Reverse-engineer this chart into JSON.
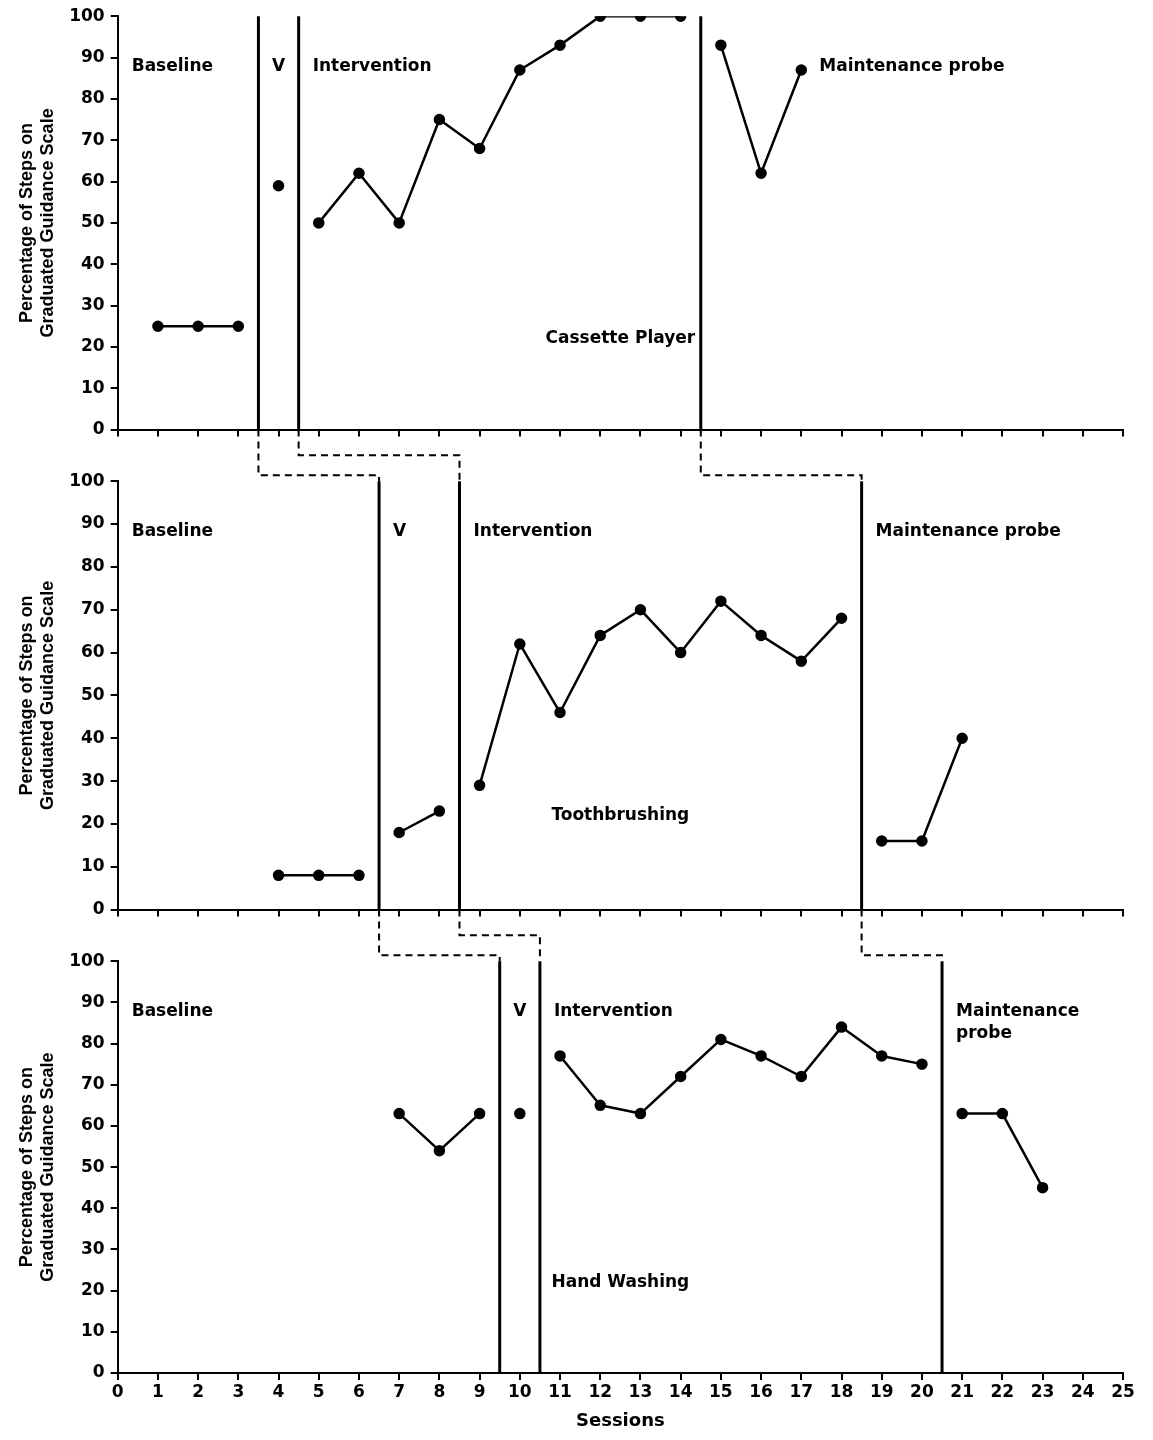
{
  "chart_data": [
    {
      "type": "line",
      "ylabel": "Percentage of Steps on Graduated Guidance Scale",
      "xlim": [
        0,
        25
      ],
      "xticks": [
        0,
        1,
        2,
        3,
        4,
        5,
        6,
        7,
        8,
        9,
        10,
        11,
        12,
        13,
        14,
        15,
        16,
        17,
        18,
        19,
        20,
        21,
        22,
        23,
        24,
        25
      ],
      "ylim": [
        0,
        100
      ],
      "yticks": [
        0,
        10,
        20,
        30,
        40,
        50,
        60,
        70,
        80,
        90,
        100
      ],
      "tick_labels": "y",
      "grid": false,
      "marker": "circle",
      "line_style": "solid",
      "series": [
        {
          "x": [
            1,
            2,
            3
          ],
          "values": [
            25,
            25,
            25
          ],
          "color": "#000000"
        },
        {
          "x": [
            4
          ],
          "values": [
            59
          ],
          "color": "#000000"
        },
        {
          "x": [
            5,
            6,
            7,
            8,
            9,
            10,
            11,
            12,
            13,
            14
          ],
          "values": [
            50,
            62,
            50,
            75,
            68,
            87,
            93,
            100,
            100,
            100
          ],
          "color": "#000000"
        },
        {
          "x": [
            15,
            16,
            17
          ],
          "values": [
            93,
            62,
            87
          ],
          "color": "#000000"
        }
      ],
      "ref_lines": [
        {
          "axis": "x",
          "value": 3.5,
          "color": "#000000"
        },
        {
          "axis": "x",
          "value": 4.5,
          "color": "#000000"
        },
        {
          "axis": "x",
          "value": 14.5,
          "color": "#000000"
        }
      ],
      "annotations": [
        "Baseline",
        "V",
        "Intervention",
        "Maintenance probe",
        "Cassette Player"
      ]
    },
    {
      "type": "line",
      "ylabel": "Percentage of Steps on Graduated Guidance Scale",
      "xlim": [
        0,
        25
      ],
      "xticks": [
        0,
        1,
        2,
        3,
        4,
        5,
        6,
        7,
        8,
        9,
        10,
        11,
        12,
        13,
        14,
        15,
        16,
        17,
        18,
        19,
        20,
        21,
        22,
        23,
        24,
        25
      ],
      "ylim": [
        0,
        100
      ],
      "yticks": [
        0,
        10,
        20,
        30,
        40,
        50,
        60,
        70,
        80,
        90,
        100
      ],
      "tick_labels": "y",
      "grid": false,
      "marker": "circle",
      "line_style": "solid",
      "series": [
        {
          "x": [
            4,
            5,
            6
          ],
          "values": [
            8,
            8,
            8
          ],
          "color": "#000000"
        },
        {
          "x": [
            7,
            8
          ],
          "values": [
            18,
            23
          ],
          "color": "#000000"
        },
        {
          "x": [
            9,
            10,
            11,
            12,
            13,
            14,
            15,
            16,
            17,
            18
          ],
          "values": [
            29,
            62,
            46,
            64,
            70,
            60,
            72,
            64,
            58,
            68
          ],
          "color": "#000000"
        },
        {
          "x": [
            19,
            20,
            21
          ],
          "values": [
            16,
            16,
            40
          ],
          "color": "#000000"
        }
      ],
      "ref_lines": [
        {
          "axis": "x",
          "value": 6.5,
          "color": "#000000"
        },
        {
          "axis": "x",
          "value": 8.5,
          "color": "#000000"
        },
        {
          "axis": "x",
          "value": 18.5,
          "color": "#000000"
        }
      ],
      "annotations": [
        "Baseline",
        "V",
        "Intervention",
        "Maintenance probe",
        "Toothbrushing"
      ]
    },
    {
      "type": "line",
      "ylabel": "Percentage of Steps on Graduated Guidance Scale",
      "xlabel": "Sessions",
      "xlim": [
        0,
        25
      ],
      "xticks": [
        0,
        1,
        2,
        3,
        4,
        5,
        6,
        7,
        8,
        9,
        10,
        11,
        12,
        13,
        14,
        15,
        16,
        17,
        18,
        19,
        20,
        21,
        22,
        23,
        24,
        25
      ],
      "ylim": [
        0,
        100
      ],
      "yticks": [
        0,
        10,
        20,
        30,
        40,
        50,
        60,
        70,
        80,
        90,
        100
      ],
      "grid": false,
      "marker": "circle",
      "line_style": "solid",
      "series": [
        {
          "x": [
            7,
            8,
            9
          ],
          "values": [
            63,
            54,
            63
          ],
          "color": "#000000"
        },
        {
          "x": [
            10
          ],
          "values": [
            63
          ],
          "color": "#000000"
        },
        {
          "x": [
            11,
            12,
            13,
            14,
            15,
            16,
            17,
            18,
            19,
            20
          ],
          "values": [
            77,
            65,
            63,
            72,
            81,
            77,
            72,
            84,
            77,
            75
          ],
          "color": "#000000"
        },
        {
          "x": [
            21,
            22,
            23
          ],
          "values": [
            63,
            63,
            45
          ],
          "color": "#000000"
        }
      ],
      "ref_lines": [
        {
          "axis": "x",
          "value": 9.5,
          "color": "#000000"
        },
        {
          "axis": "x",
          "value": 10.5,
          "color": "#000000"
        },
        {
          "axis": "x",
          "value": 20.5,
          "color": "#000000"
        }
      ],
      "annotations": [
        "Baseline",
        "V",
        "Intervention",
        "Maintenance probe",
        "Hand Washing"
      ]
    }
  ]
}
